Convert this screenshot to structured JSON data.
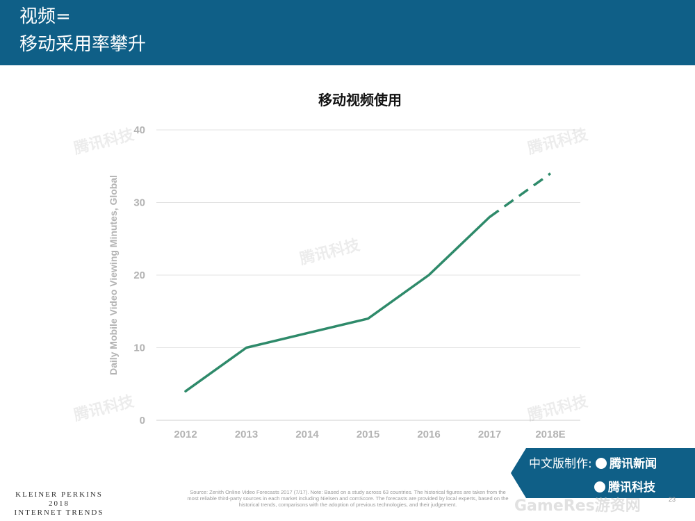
{
  "header": {
    "title_line1": "视频=",
    "title_line2": "移动采用率攀升",
    "background": "#0f5f87"
  },
  "chart_data": {
    "type": "line",
    "title": "移动视频使用",
    "xlabel": "",
    "ylabel": "Daily Mobile Video Viewing Minutes, Global",
    "categories": [
      "2012",
      "2013",
      "2014",
      "2015",
      "2016",
      "2017",
      "2018E"
    ],
    "series": [
      {
        "values": [
          4,
          10,
          12,
          14,
          20,
          28,
          34
        ],
        "color": "#2e8a6a",
        "solid_until_index": 5,
        "projection_style": "dashed"
      }
    ],
    "yticks": [
      "0",
      "10",
      "20",
      "30",
      "40"
    ],
    "ylim": [
      0,
      40
    ],
    "grid": true,
    "legend": "none"
  },
  "watermark": {
    "text": "腾讯科技"
  },
  "branding": {
    "label": "中文版制作:",
    "brand1": "腾讯新闻",
    "brand2": "腾讯科技"
  },
  "footer": {
    "kp_line1": "KLEINER PERKINS",
    "kp_line2": "2018",
    "kp_line3": "INTERNET TRENDS",
    "source_text": "Source: Zenith Online Video Forecasts 2017 (7/17). Note: Based on a study across 63 countries. The historical figures are taken from the most reliable third-party sources in each market including Nielsen and comScore. The forecasts are provided by local experts, based on the historical trends, comparisons with the adoption of previous technologies, and their judgement.",
    "gameres": "GameRes游资网",
    "page_number": "23"
  }
}
